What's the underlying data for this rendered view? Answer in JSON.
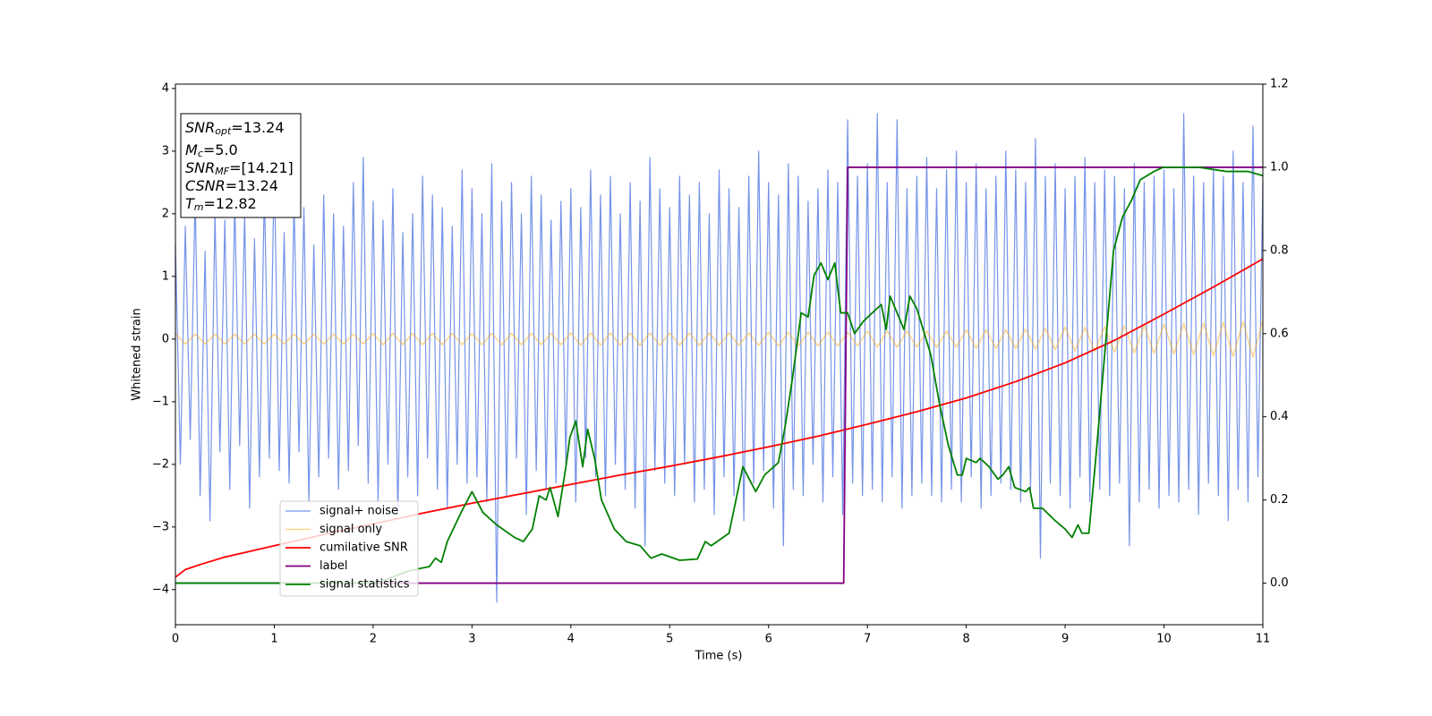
{
  "chart_data": {
    "type": "line",
    "xlabel": "Time (s)",
    "ylabel": "Whitened strain",
    "xlim": [
      0,
      11
    ],
    "ylim": [
      -4.56,
      4.07
    ],
    "y2lim": [
      -0.1,
      1.2
    ],
    "xticks": [
      0,
      1,
      2,
      3,
      4,
      5,
      6,
      7,
      8,
      9,
      10,
      11
    ],
    "yticks": [
      {
        "value": -4,
        "label": "−4"
      },
      {
        "value": -3,
        "label": "−3"
      },
      {
        "value": -2,
        "label": "−2"
      },
      {
        "value": -1,
        "label": "−1"
      },
      0,
      1,
      2,
      3,
      4
    ],
    "y2ticks": [
      {
        "value": 0,
        "label": "0.0"
      },
      0.2,
      0.4,
      0.6,
      0.8,
      {
        "value": 1,
        "label": "1.0"
      },
      1.2
    ],
    "legend": "lower left",
    "annotation": [
      {
        "var": "SNR",
        "sub": "opt",
        "rest": "=13.24"
      },
      {
        "var": "M",
        "sub": "c",
        "rest": "=5.0"
      },
      {
        "var": "SNR",
        "sub": "MF",
        "rest": "=[14.21]"
      },
      {
        "var": "CSNR",
        "rest": "=13.24"
      },
      {
        "var": "T",
        "sub": "m",
        "rest": "=12.82"
      }
    ],
    "series": [
      {
        "name": "signal+ noise",
        "color": "#4169e1",
        "alpha": 0.72,
        "width": 1.2,
        "x": [
          0,
          0.05,
          0.1,
          0.15,
          0.2,
          0.25,
          0.3,
          0.35,
          0.4,
          0.45,
          0.5,
          0.55,
          0.6,
          0.65,
          0.7,
          0.75,
          0.8,
          0.85,
          0.9,
          0.95,
          1,
          1.05,
          1.1,
          1.15,
          1.2,
          1.25,
          1.3,
          1.35,
          1.4,
          1.45,
          1.5,
          1.55,
          1.6,
          1.65,
          1.7,
          1.75,
          1.8,
          1.85,
          1.9,
          1.95,
          2,
          2.05,
          2.1,
          2.15,
          2.2,
          2.25,
          2.3,
          2.35,
          2.4,
          2.45,
          2.5,
          2.55,
          2.6,
          2.65,
          2.7,
          2.75,
          2.8,
          2.85,
          2.9,
          2.95,
          3,
          3.05,
          3.1,
          3.15,
          3.2,
          3.25,
          3.3,
          3.35,
          3.4,
          3.45,
          3.5,
          3.55,
          3.6,
          3.65,
          3.7,
          3.75,
          3.8,
          3.85,
          3.9,
          3.95,
          4,
          4.05,
          4.1,
          4.15,
          4.2,
          4.25,
          4.3,
          4.35,
          4.4,
          4.45,
          4.5,
          4.55,
          4.6,
          4.65,
          4.7,
          4.75,
          4.8,
          4.85,
          4.9,
          4.95,
          5,
          5.05,
          5.1,
          5.15,
          5.2,
          5.25,
          5.3,
          5.35,
          5.4,
          5.45,
          5.5,
          5.55,
          5.6,
          5.65,
          5.7,
          5.75,
          5.8,
          5.85,
          5.9,
          5.95,
          6,
          6.05,
          6.1,
          6.15,
          6.2,
          6.25,
          6.3,
          6.35,
          6.4,
          6.45,
          6.5,
          6.55,
          6.6,
          6.65,
          6.7,
          6.75,
          6.8,
          6.85,
          6.9,
          6.95,
          7,
          7.05,
          7.1,
          7.15,
          7.2,
          7.25,
          7.3,
          7.35,
          7.4,
          7.45,
          7.5,
          7.55,
          7.6,
          7.65,
          7.7,
          7.75,
          7.8,
          7.85,
          7.9,
          7.95,
          8,
          8.05,
          8.1,
          8.15,
          8.2,
          8.25,
          8.3,
          8.35,
          8.4,
          8.45,
          8.5,
          8.55,
          8.6,
          8.65,
          8.7,
          8.75,
          8.8,
          8.85,
          8.9,
          8.95,
          9,
          9.05,
          9.1,
          9.15,
          9.2,
          9.25,
          9.3,
          9.35,
          9.4,
          9.45,
          9.5,
          9.55,
          9.6,
          9.65,
          9.7,
          9.75,
          9.8,
          9.85,
          9.9,
          9.95,
          10,
          10.05,
          10.1,
          10.15,
          10.2,
          10.25,
          10.3,
          10.35,
          10.4,
          10.45,
          10.5,
          10.55,
          10.6,
          10.65,
          10.7,
          10.75,
          10.8,
          10.85,
          10.9,
          10.95,
          11
        ],
        "values": [
          1.5,
          -2.0,
          1.8,
          -1.6,
          2.3,
          -2.5,
          1.4,
          -2.9,
          2.0,
          -1.8,
          1.9,
          -2.4,
          2.2,
          -1.7,
          2.0,
          -2.7,
          1.6,
          -2.2,
          2.4,
          -1.9,
          2.8,
          -2.1,
          1.7,
          -2.3,
          2.2,
          -1.8,
          2.1,
          -2.6,
          1.5,
          -2.2,
          2.3,
          -1.9,
          2.0,
          -2.4,
          1.8,
          -2.1,
          2.5,
          -1.7,
          2.9,
          -2.3,
          2.2,
          -2.6,
          1.9,
          -2.0,
          2.4,
          -2.8,
          1.7,
          -2.2,
          2.0,
          -2.5,
          2.6,
          -1.9,
          2.3,
          -2.4,
          2.1,
          -2.7,
          1.8,
          -2.0,
          2.7,
          -2.3,
          2.4,
          -2.2,
          2.0,
          -2.6,
          2.8,
          -4.2,
          2.2,
          -2.5,
          2.5,
          -1.9,
          2.0,
          -2.8,
          2.6,
          -2.1,
          2.3,
          -2.4,
          1.9,
          -2.3,
          2.2,
          -2.0,
          2.4,
          -2.6,
          2.1,
          -1.9,
          2.7,
          -2.2,
          2.3,
          -2.5,
          2.6,
          -2.0,
          2.0,
          -2.4,
          2.5,
          -2.7,
          2.2,
          -3.3,
          2.9,
          -2.1,
          2.4,
          -2.3,
          2.1,
          -2.5,
          2.6,
          -2.0,
          2.3,
          -2.6,
          2.5,
          -2.4,
          2.0,
          -2.8,
          2.7,
          -2.2,
          2.4,
          -2.5,
          2.1,
          -2.9,
          2.6,
          -2.3,
          3.0,
          -2.1,
          2.5,
          -2.7,
          2.3,
          -3.3,
          2.8,
          -2.4,
          2.6,
          -2.5,
          2.2,
          -2.0,
          2.4,
          -2.6,
          2.7,
          -2.2,
          2.5,
          -2.8,
          3.5,
          -2.3,
          2.6,
          -2.5,
          2.8,
          -2.4,
          3.6,
          -2.6,
          2.5,
          -2.2,
          3.5,
          -2.7,
          2.4,
          -2.5,
          2.6,
          -2.3,
          2.9,
          -2.5,
          2.4,
          -2.6,
          2.7,
          -2.4,
          3.0,
          -2.6,
          2.5,
          -2.2,
          2.8,
          -2.7,
          2.4,
          -2.5,
          2.6,
          -2.3,
          3.0,
          -2.4,
          2.7,
          -2.6,
          2.5,
          -2.4,
          3.2,
          -3.5,
          2.6,
          -2.3,
          2.8,
          -2.5,
          2.4,
          -2.7,
          2.6,
          -2.2,
          2.9,
          -2.6,
          2.5,
          -2.4,
          2.7,
          -2.5,
          2.6,
          -2.3,
          2.4,
          -3.3,
          2.8,
          -2.6,
          2.5,
          -2.4,
          2.6,
          -2.7,
          2.7,
          -2.5,
          2.4,
          -2.6,
          3.6,
          -2.4,
          2.6,
          -2.8,
          2.5,
          -2.3,
          2.7,
          -2.5,
          2.6,
          -2.9,
          3.0,
          -2.4,
          2.5,
          -2.6,
          3.4,
          -2.2,
          2.5
        ]
      },
      {
        "name": "signal only",
        "color": "#ffa500",
        "alpha": 0.45,
        "width": 1.5,
        "x": [
          0,
          0.1,
          0.2,
          0.3,
          0.4,
          0.5,
          0.6,
          0.7,
          0.8,
          0.9,
          1,
          1.1,
          1.2,
          1.3,
          1.4,
          1.5,
          1.6,
          1.7,
          1.8,
          1.9,
          2,
          2.1,
          2.2,
          2.3,
          2.4,
          2.5,
          2.6,
          2.7,
          2.8,
          2.9,
          3,
          3.1,
          3.2,
          3.3,
          3.4,
          3.5,
          3.6,
          3.7,
          3.8,
          3.9,
          4,
          4.1,
          4.2,
          4.3,
          4.4,
          4.5,
          4.6,
          4.7,
          4.8,
          4.9,
          5,
          5.1,
          5.2,
          5.3,
          5.4,
          5.5,
          5.6,
          5.7,
          5.8,
          5.9,
          6,
          6.1,
          6.2,
          6.3,
          6.4,
          6.5,
          6.6,
          6.7,
          6.8,
          6.9,
          7,
          7.1,
          7.2,
          7.3,
          7.4,
          7.5,
          7.6,
          7.7,
          7.8,
          7.9,
          8,
          8.1,
          8.2,
          8.3,
          8.4,
          8.5,
          8.6,
          8.7,
          8.8,
          8.9,
          9,
          9.1,
          9.2,
          9.3,
          9.4,
          9.5,
          9.6,
          9.7,
          9.8,
          9.9,
          10,
          10.1,
          10.2,
          10.3,
          10.4,
          10.5,
          10.6,
          10.7,
          10.8,
          10.9,
          11
        ],
        "values": [
          0.08,
          -0.08,
          0.08,
          -0.08,
          0.08,
          -0.08,
          0.08,
          -0.08,
          0.08,
          -0.08,
          0.08,
          -0.08,
          0.08,
          -0.08,
          0.08,
          -0.08,
          0.08,
          -0.08,
          0.08,
          -0.08,
          0.09,
          -0.09,
          0.09,
          -0.09,
          0.09,
          -0.09,
          0.09,
          -0.09,
          0.09,
          -0.09,
          0.09,
          -0.09,
          0.09,
          -0.09,
          0.09,
          -0.09,
          0.09,
          -0.09,
          0.09,
          -0.09,
          0.1,
          -0.1,
          0.1,
          -0.1,
          0.1,
          -0.1,
          0.1,
          -0.1,
          0.1,
          -0.1,
          0.1,
          -0.1,
          0.1,
          -0.1,
          0.1,
          -0.1,
          0.1,
          -0.1,
          0.1,
          -0.1,
          0.11,
          -0.11,
          0.11,
          -0.11,
          0.11,
          -0.11,
          0.11,
          -0.11,
          0.11,
          -0.11,
          0.13,
          -0.13,
          0.13,
          -0.13,
          0.13,
          -0.13,
          0.13,
          -0.13,
          0.13,
          -0.13,
          0.15,
          -0.15,
          0.15,
          -0.15,
          0.15,
          -0.15,
          0.16,
          -0.16,
          0.17,
          -0.17,
          0.19,
          -0.19,
          0.19,
          -0.2,
          0.2,
          -0.21,
          0.21,
          -0.22,
          0.22,
          -0.23,
          0.24,
          -0.24,
          0.25,
          -0.25,
          0.26,
          -0.27,
          0.27,
          -0.28,
          0.28,
          -0.29,
          0.3
        ]
      },
      {
        "name": "cumilative SNR",
        "color": "#ff0000",
        "alpha": 1,
        "width": 1.8,
        "x": [
          0,
          0.1,
          0.25,
          0.5,
          1,
          1.5,
          2,
          2.5,
          3,
          3.5,
          4,
          4.5,
          5,
          5.5,
          6,
          6.5,
          7,
          7.5,
          8,
          8.5,
          9,
          9.5,
          10,
          10.5,
          11
        ],
        "values": [
          -3.8,
          -3.68,
          -3.6,
          -3.48,
          -3.3,
          -3.12,
          -2.95,
          -2.78,
          -2.62,
          -2.47,
          -2.32,
          -2.17,
          -2.03,
          -1.88,
          -1.72,
          -1.55,
          -1.36,
          -1.16,
          -0.94,
          -0.68,
          -0.38,
          -0.02,
          0.4,
          0.83,
          1.28
        ]
      },
      {
        "name": "label",
        "color": "#800080",
        "alpha": 1,
        "width": 1.8,
        "axis": "y2",
        "x": [
          0,
          6.76,
          6.8,
          11
        ],
        "values": [
          0,
          0,
          1,
          1
        ]
      },
      {
        "name": "signal statistics",
        "color": "#008000",
        "alpha": 1,
        "width": 1.8,
        "axis": "y2",
        "x": [
          0,
          2.03,
          2.37,
          2.57,
          2.63,
          2.69,
          2.75,
          2.89,
          3.0,
          3.11,
          3.25,
          3.43,
          3.52,
          3.61,
          3.68,
          3.75,
          3.79,
          3.87,
          3.95,
          3.99,
          4.05,
          4.12,
          4.17,
          4.24,
          4.31,
          4.44,
          4.56,
          4.7,
          4.81,
          4.92,
          5.1,
          5.28,
          5.36,
          5.42,
          5.6,
          5.74,
          5.87,
          5.96,
          6.1,
          6.17,
          6.24,
          6.33,
          6.4,
          6.46,
          6.53,
          6.6,
          6.67,
          6.73,
          6.8,
          6.87,
          6.96,
          7.14,
          7.19,
          7.23,
          7.37,
          7.43,
          7.5,
          7.64,
          7.73,
          7.82,
          7.91,
          7.96,
          8.0,
          8.1,
          8.14,
          8.23,
          8.32,
          8.37,
          8.43,
          8.49,
          8.6,
          8.64,
          8.68,
          8.77,
          8.9,
          9.0,
          9.07,
          9.13,
          9.17,
          9.24,
          9.31,
          9.4,
          9.49,
          9.58,
          9.67,
          9.76,
          9.9,
          9.99,
          10.35,
          10.63,
          10.85,
          11
        ],
        "values": [
          0,
          0,
          0.03,
          0.04,
          0.06,
          0.05,
          0.1,
          0.17,
          0.22,
          0.17,
          0.14,
          0.11,
          0.1,
          0.13,
          0.21,
          0.2,
          0.23,
          0.16,
          0.28,
          0.35,
          0.39,
          0.28,
          0.37,
          0.3,
          0.2,
          0.13,
          0.1,
          0.09,
          0.06,
          0.07,
          0.055,
          0.058,
          0.1,
          0.09,
          0.12,
          0.28,
          0.22,
          0.26,
          0.29,
          0.38,
          0.49,
          0.65,
          0.64,
          0.74,
          0.77,
          0.73,
          0.77,
          0.65,
          0.65,
          0.6,
          0.63,
          0.67,
          0.61,
          0.69,
          0.61,
          0.69,
          0.66,
          0.55,
          0.43,
          0.33,
          0.26,
          0.26,
          0.3,
          0.29,
          0.3,
          0.28,
          0.25,
          0.26,
          0.28,
          0.23,
          0.22,
          0.23,
          0.18,
          0.18,
          0.15,
          0.13,
          0.11,
          0.14,
          0.12,
          0.12,
          0.3,
          0.55,
          0.8,
          0.88,
          0.92,
          0.97,
          0.99,
          1.0,
          1.0,
          0.99,
          0.99,
          0.98
        ]
      }
    ]
  }
}
